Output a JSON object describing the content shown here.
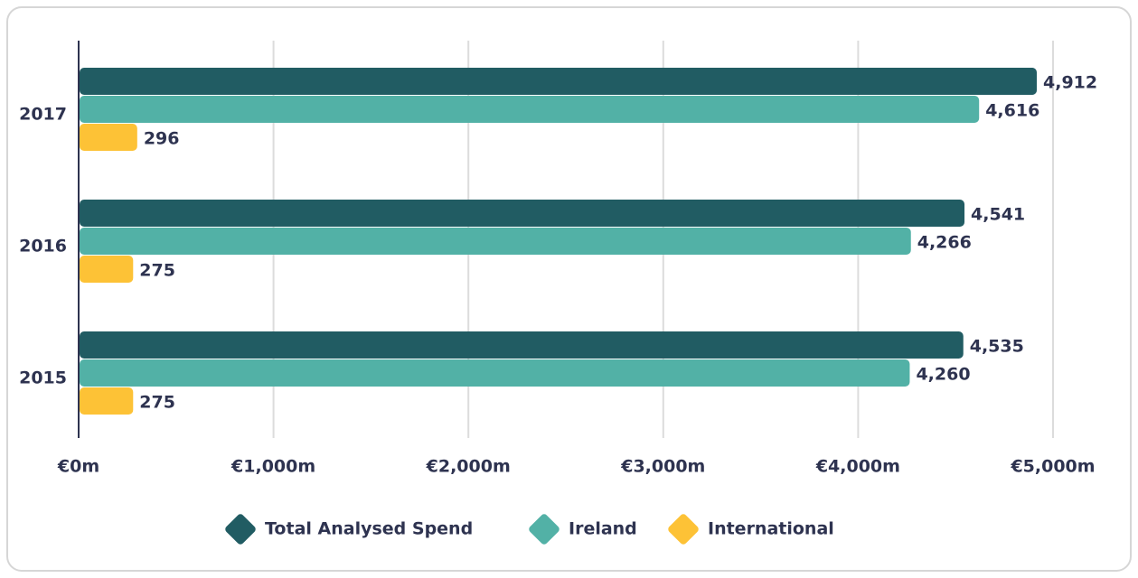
{
  "chart_data": {
    "type": "bar",
    "orientation": "horizontal",
    "categories": [
      "2017",
      "2016",
      "2015"
    ],
    "series": [
      {
        "name": "Total Analysed Spend",
        "color": "#215c63",
        "values": [
          4912,
          4541,
          4535
        ],
        "value_labels": [
          "4,912",
          "4,541",
          "4,535"
        ]
      },
      {
        "name": "Ireland",
        "color": "#52b1a6",
        "values": [
          4616,
          4266,
          4260
        ],
        "value_labels": [
          "4,616",
          "4,266",
          "4,260"
        ]
      },
      {
        "name": "International",
        "color": "#fdc236",
        "values": [
          296,
          275,
          275
        ],
        "value_labels": [
          "296",
          "275",
          "275"
        ]
      }
    ],
    "xlim": [
      0,
      5000
    ],
    "xticks": [
      {
        "value": 0,
        "label": "€0m"
      },
      {
        "value": 1000,
        "label": "€1,000m"
      },
      {
        "value": 2000,
        "label": "€2,000m"
      },
      {
        "value": 3000,
        "label": "€3,000m"
      },
      {
        "value": 4000,
        "label": "€4,000m"
      },
      {
        "value": 5000,
        "label": "€5,000m"
      }
    ],
    "grid": true,
    "legend": "bottom"
  }
}
